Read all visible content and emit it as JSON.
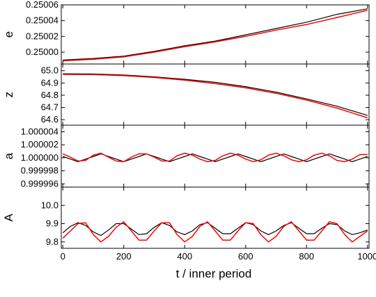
{
  "chart_data": {
    "type": "line",
    "xlabel": "t / inner period",
    "xlim": [
      -5,
      1005
    ],
    "xticks": [
      0,
      200,
      400,
      600,
      800,
      1000
    ],
    "xtick_labels": [
      "0",
      "200",
      "400",
      "600",
      "800",
      "1000"
    ],
    "grid": false,
    "legend": "none",
    "colors": {
      "series_1": "#000000",
      "series_2": "#ff0000",
      "axes": "#000000"
    },
    "panels": [
      {
        "ylabel": "e",
        "ylim": [
          0.249985,
          0.25006
        ],
        "yticks": [
          0.25,
          0.25002,
          0.25004,
          0.25006
        ],
        "ytick_labels": [
          "0.25000",
          "0.25002",
          "0.25004",
          "0.25006"
        ],
        "series": [
          {
            "color": "#000000",
            "x": [
              0,
              100,
              200,
              300,
              400,
              500,
              600,
              700,
              800,
              900,
              1000
            ],
            "y": [
              0.24999,
              0.249992,
              0.249995,
              0.250001,
              0.250008,
              0.250014,
              0.250022,
              0.25003,
              0.250038,
              0.250048,
              0.250055
            ]
          },
          {
            "color": "#ff0000",
            "x": [
              0,
              100,
              200,
              300,
              400,
              500,
              600,
              700,
              800,
              900,
              1000
            ],
            "y": [
              0.249989,
              0.249991,
              0.249994,
              0.25,
              0.250007,
              0.250013,
              0.25002,
              0.250028,
              0.250035,
              0.250044,
              0.250053
            ]
          }
        ]
      },
      {
        "ylabel": "z",
        "ylim": [
          64.555,
          65.055
        ],
        "yticks": [
          64.6,
          64.7,
          64.8,
          64.9,
          65.0
        ],
        "ytick_labels": [
          "64.6",
          "64.7",
          "64.8",
          "64.9",
          "65.0"
        ],
        "series": [
          {
            "color": "#000000",
            "x": [
              0,
              100,
              200,
              300,
              400,
              500,
              600,
              700,
              800,
              900,
              1000
            ],
            "y": [
              64.975,
              64.973,
              64.965,
              64.95,
              64.93,
              64.905,
              64.87,
              64.825,
              64.77,
              64.71,
              64.635
            ]
          },
          {
            "color": "#ff0000",
            "x": [
              0,
              100,
              200,
              300,
              400,
              500,
              600,
              700,
              800,
              900,
              1000
            ],
            "y": [
              64.97,
              64.968,
              64.96,
              64.945,
              64.923,
              64.895,
              64.86,
              64.815,
              64.76,
              64.695,
              64.615
            ]
          }
        ]
      },
      {
        "ylabel": "a",
        "ylim": [
          0.9999955,
          1.000005
        ],
        "yticks": [
          0.999996,
          0.999998,
          1.0,
          1.000002,
          1.000004
        ],
        "ytick_labels": [
          "0.999996",
          "0.999998",
          "1.000000",
          "1.000002",
          "1.000004"
        ],
        "series": [
          {
            "color": "#000000",
            "x": [
              0,
              25,
              50,
              75,
              100,
              125,
              150,
              175,
              200,
              225,
              250,
              275,
              300,
              325,
              350,
              375,
              400,
              425,
              450,
              475,
              500,
              525,
              550,
              575,
              600,
              625,
              650,
              675,
              700,
              725,
              750,
              775,
              800,
              825,
              850,
              875,
              900,
              925,
              950,
              975,
              1000
            ],
            "y": [
              1.0000002,
              0.9999998,
              0.9999994,
              0.9999998,
              1.0000002,
              1.0000006,
              1.0000002,
              0.9999998,
              0.9999994,
              0.9999998,
              1.0000002,
              1.0000006,
              1.0000002,
              0.9999998,
              0.9999994,
              0.9999998,
              1.0000002,
              1.0000006,
              1.0000002,
              0.9999998,
              0.9999994,
              0.9999998,
              1.0000002,
              1.0000006,
              1.0000002,
              0.9999998,
              0.9999994,
              0.9999998,
              1.0000002,
              1.0000006,
              1.0000002,
              0.9999998,
              0.9999994,
              0.9999998,
              1.0000002,
              1.0000006,
              1.0000002,
              0.9999998,
              0.9999994,
              0.9999998,
              1.0000002
            ]
          },
          {
            "color": "#ff0000",
            "x": [
              0,
              25,
              50,
              75,
              100,
              125,
              150,
              175,
              200,
              225,
              250,
              275,
              300,
              325,
              350,
              375,
              400,
              425,
              450,
              475,
              500,
              525,
              550,
              575,
              600,
              625,
              650,
              675,
              700,
              725,
              750,
              775,
              800,
              825,
              850,
              875,
              900,
              925,
              950,
              975,
              1000
            ],
            "y": [
              1.0000006,
              1.0000001,
              0.9999995,
              0.9999996,
              1.0000004,
              1.0000007,
              1.0000001,
              0.9999995,
              0.9999994,
              1.0000001,
              1.0000006,
              1.0000006,
              1.0000001,
              0.9999995,
              0.9999995,
              1.0000003,
              1.0000007,
              1.0000004,
              0.9999998,
              0.9999994,
              0.9999996,
              1.0000003,
              1.0000007,
              1.0000004,
              0.9999998,
              0.9999994,
              0.9999997,
              1.0000004,
              1.0000007,
              1.0000003,
              0.9999997,
              0.9999994,
              0.9999997,
              1.0000004,
              1.0000007,
              1.0000003,
              0.9999996,
              0.9999994,
              0.9999998,
              1.0000005,
              1.0000005
            ]
          }
        ]
      },
      {
        "ylabel": "A",
        "ylim": [
          9.765,
          10.1
        ],
        "yticks": [
          9.8,
          9.9,
          10.0
        ],
        "ytick_labels": [
          "9.8",
          "9.9",
          "10.0"
        ],
        "series": [
          {
            "color": "#000000",
            "x": [
              0,
              25,
              50,
              75,
              100,
              125,
              150,
              175,
              200,
              225,
              250,
              275,
              300,
              325,
              350,
              375,
              400,
              425,
              450,
              475,
              500,
              525,
              550,
              575,
              600,
              625,
              650,
              675,
              700,
              725,
              750,
              775,
              800,
              825,
              850,
              875,
              900,
              925,
              950,
              975,
              1000
            ],
            "y": [
              9.85,
              9.885,
              9.905,
              9.89,
              9.855,
              9.835,
              9.865,
              9.9,
              9.9,
              9.87,
              9.84,
              9.845,
              9.88,
              9.905,
              9.89,
              9.855,
              9.84,
              9.86,
              9.895,
              9.905,
              9.875,
              9.845,
              9.845,
              9.875,
              9.905,
              9.895,
              9.86,
              9.84,
              9.86,
              9.89,
              9.905,
              9.875,
              9.845,
              9.845,
              9.875,
              9.9,
              9.895,
              9.86,
              9.84,
              9.85,
              9.865
            ]
          },
          {
            "color": "#ff0000",
            "x": [
              0,
              25,
              50,
              75,
              100,
              125,
              150,
              175,
              200,
              225,
              250,
              275,
              300,
              325,
              350,
              375,
              400,
              425,
              450,
              475,
              500,
              525,
              550,
              575,
              600,
              625,
              650,
              675,
              700,
              725,
              750,
              775,
              800,
              825,
              850,
              875,
              900,
              925,
              950,
              975,
              1000
            ],
            "y": [
              9.82,
              9.86,
              9.9,
              9.905,
              9.84,
              9.8,
              9.83,
              9.88,
              9.91,
              9.86,
              9.81,
              9.81,
              9.86,
              9.905,
              9.905,
              9.84,
              9.8,
              9.83,
              9.885,
              9.91,
              9.86,
              9.81,
              9.81,
              9.86,
              9.905,
              9.9,
              9.84,
              9.8,
              9.83,
              9.885,
              9.91,
              9.86,
              9.81,
              9.81,
              9.86,
              9.91,
              9.9,
              9.84,
              9.8,
              9.83,
              9.86
            ]
          }
        ]
      }
    ]
  }
}
